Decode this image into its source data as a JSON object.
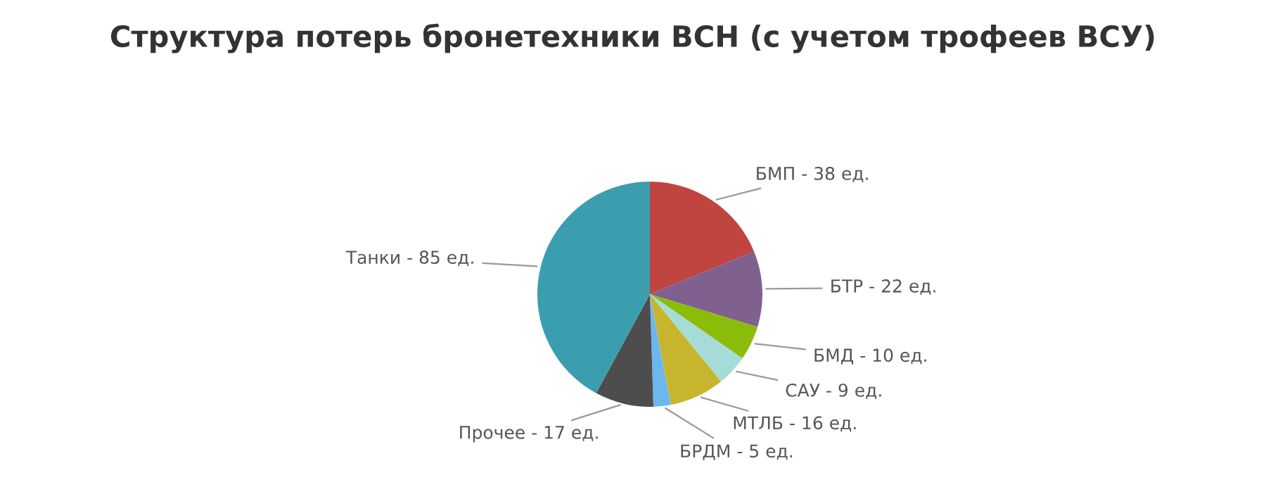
{
  "chart_data": {
    "type": "pie",
    "title": "Структура потерь бронетехники ВСН (с учетом трофеев ВСУ)",
    "categories": [
      "БМП",
      "БТР",
      "БМД",
      "САУ",
      "МТЛБ",
      "БРДМ",
      "Прочее",
      "Танки"
    ],
    "values": [
      38,
      22,
      10,
      9,
      16,
      5,
      17,
      85
    ],
    "value_labels": [
      "38 ед.",
      "22 ед.",
      "10 ед.",
      "9 ед.",
      "16 ед.",
      "5 ед.",
      "17 ед.",
      "85 ед."
    ],
    "colors": [
      "#c0443f",
      "#80608f",
      "#8cbc0a",
      "#a6dcd8",
      "#c8b52e",
      "#6cb8ee",
      "#4d4d4d",
      "#3a9eae"
    ]
  }
}
